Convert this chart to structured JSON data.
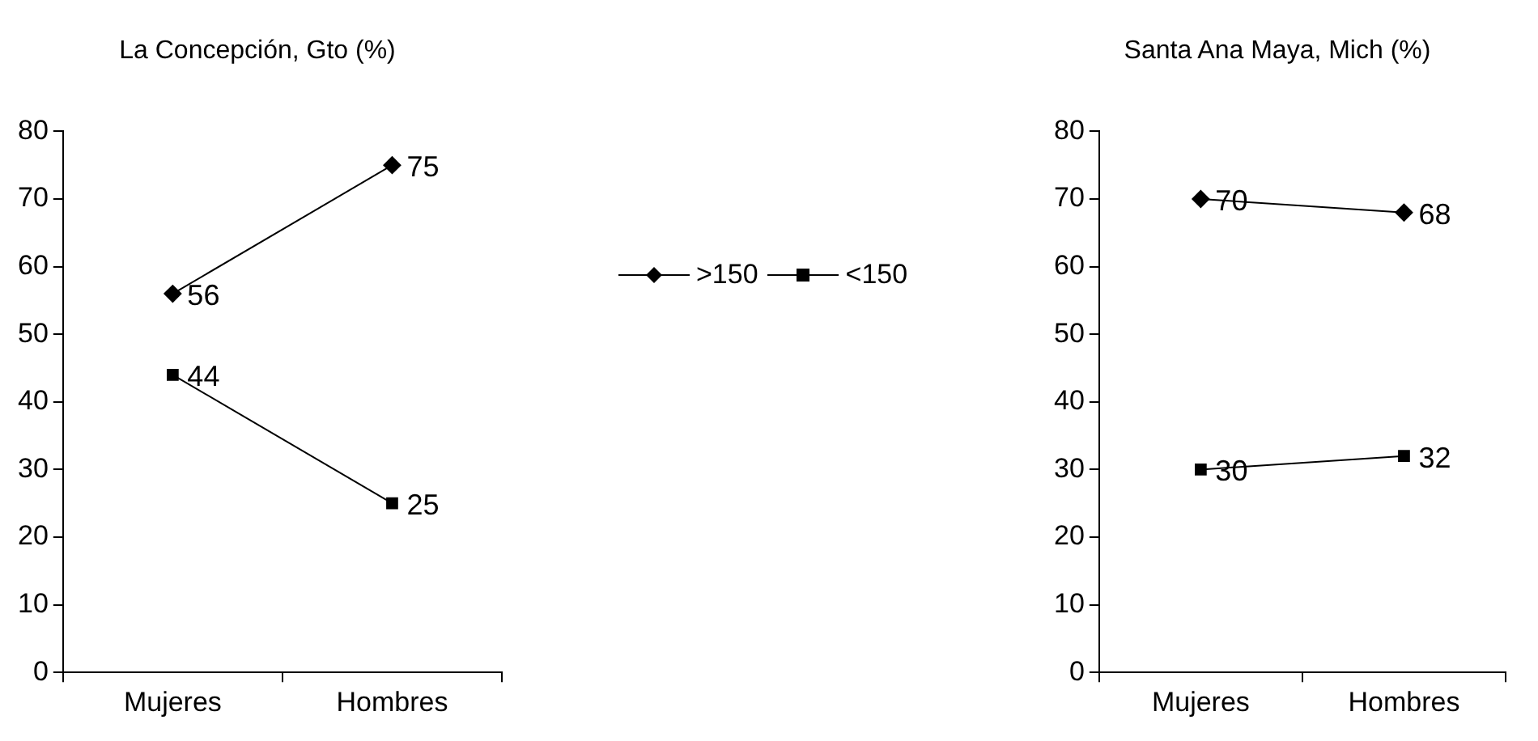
{
  "chart_data": [
    {
      "type": "line",
      "title": "La Concepción, Gto (%)",
      "categories": [
        "Mujeres",
        "Hombres"
      ],
      "series": [
        {
          "name": ">150",
          "color": "#000000",
          "marker": "diamond",
          "values": [
            56,
            75
          ]
        },
        {
          "name": "<150",
          "color": "#000000",
          "marker": "square",
          "values": [
            44,
            25
          ]
        }
      ],
      "ylim": [
        0,
        80
      ],
      "yticks": [
        0,
        10,
        20,
        30,
        40,
        50,
        60,
        70,
        80
      ],
      "grid": false,
      "legend": "right",
      "data_labels": true
    },
    {
      "type": "line",
      "title": "Santa Ana Maya, Mich (%)",
      "categories": [
        "Mujeres",
        "Hombres"
      ],
      "series": [
        {
          "color": "#000000",
          "marker": "diamond",
          "values": [
            70,
            68
          ]
        },
        {
          "color": "#000000",
          "marker": "square",
          "values": [
            30,
            32
          ]
        }
      ],
      "ylim": [
        0,
        80
      ],
      "yticks": [
        0,
        10,
        20,
        30,
        40,
        50,
        60,
        70,
        80
      ],
      "grid": false,
      "legend": false,
      "data_labels": true
    }
  ]
}
